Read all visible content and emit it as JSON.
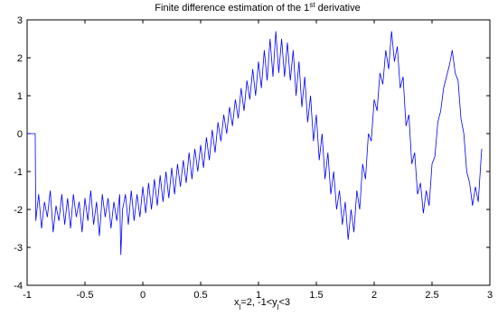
{
  "chart_data": {
    "type": "line",
    "title": [
      "Finite difference estimation of the 1",
      "st",
      " derivative"
    ],
    "x_label": [
      "x",
      "l",
      "=2, -1<y",
      "l",
      "<3"
    ],
    "color": "#0000ff",
    "xlim": [
      -1,
      3
    ],
    "ylim": [
      -4,
      3
    ],
    "xticks": [
      -1,
      -0.5,
      0,
      0.5,
      1,
      1.5,
      2,
      2.5,
      3
    ],
    "yticks": [
      -4,
      -3,
      -2,
      -1,
      0,
      1,
      2,
      3
    ],
    "grid": false,
    "x": [
      -1,
      -0.93,
      -0.925,
      -0.9,
      -0.875,
      -0.85,
      -0.825,
      -0.8,
      -0.775,
      -0.75,
      -0.725,
      -0.7,
      -0.675,
      -0.65,
      -0.625,
      -0.6,
      -0.575,
      -0.55,
      -0.525,
      -0.5,
      -0.475,
      -0.45,
      -0.425,
      -0.4,
      -0.375,
      -0.35,
      -0.325,
      -0.3,
      -0.275,
      -0.25,
      -0.225,
      -0.2,
      -0.19,
      -0.175,
      -0.15,
      -0.125,
      -0.1,
      -0.075,
      -0.05,
      -0.025,
      0,
      0.025,
      0.05,
      0.075,
      0.1,
      0.125,
      0.15,
      0.175,
      0.2,
      0.225,
      0.25,
      0.275,
      0.3,
      0.325,
      0.35,
      0.375,
      0.4,
      0.425,
      0.45,
      0.475,
      0.5,
      0.525,
      0.55,
      0.575,
      0.6,
      0.625,
      0.65,
      0.675,
      0.7,
      0.725,
      0.75,
      0.775,
      0.8,
      0.825,
      0.85,
      0.875,
      0.9,
      0.925,
      0.95,
      0.975,
      1.0,
      1.025,
      1.05,
      1.075,
      1.1,
      1.125,
      1.15,
      1.175,
      1.2,
      1.225,
      1.25,
      1.275,
      1.3,
      1.325,
      1.35,
      1.375,
      1.4,
      1.425,
      1.45,
      1.475,
      1.5,
      1.525,
      1.55,
      1.575,
      1.6,
      1.625,
      1.65,
      1.675,
      1.7,
      1.725,
      1.75,
      1.775,
      1.8,
      1.825,
      1.85,
      1.875,
      1.9,
      1.925,
      1.95,
      1.975,
      2.0,
      2.025,
      2.05,
      2.075,
      2.1,
      2.125,
      2.15,
      2.175,
      2.2,
      2.225,
      2.25,
      2.275,
      2.3,
      2.325,
      2.35,
      2.375,
      2.4,
      2.425,
      2.45,
      2.475,
      2.5,
      2.525,
      2.55,
      2.575,
      2.6,
      2.625,
      2.65,
      2.675,
      2.7,
      2.725,
      2.75,
      2.775,
      2.8,
      2.825,
      2.85,
      2.875,
      2.9,
      2.925,
      2.93
    ],
    "values": [
      0,
      0,
      -2.3,
      -1.6,
      -2.5,
      -1.8,
      -2.2,
      -1.5,
      -2.6,
      -1.9,
      -2.3,
      -1.6,
      -2.4,
      -1.7,
      -2.5,
      -1.6,
      -2.2,
      -1.8,
      -2.6,
      -1.7,
      -2.3,
      -1.5,
      -2.4,
      -1.8,
      -2.7,
      -1.6,
      -2.2,
      -1.7,
      -2.5,
      -1.8,
      -2.3,
      -1.6,
      -3.2,
      -2.0,
      -1.6,
      -2.4,
      -1.5,
      -2.3,
      -1.6,
      -2.2,
      -1.4,
      -2.1,
      -1.3,
      -2.0,
      -1.2,
      -1.9,
      -1.1,
      -1.8,
      -1.0,
      -1.7,
      -0.9,
      -1.6,
      -0.8,
      -1.4,
      -0.7,
      -1.3,
      -0.5,
      -1.2,
      -0.4,
      -1.0,
      -0.3,
      -0.9,
      -0.1,
      -0.7,
      0.1,
      -0.5,
      0.3,
      -0.2,
      0.5,
      0.0,
      0.7,
      0.2,
      0.9,
      0.4,
      1.2,
      0.6,
      1.4,
      0.9,
      1.7,
      1.0,
      1.9,
      1.2,
      2.2,
      1.4,
      2.5,
      1.5,
      2.7,
      1.6,
      2.5,
      1.5,
      2.4,
      1.4,
      2.2,
      1.0,
      1.9,
      0.7,
      1.5,
      0.3,
      1.0,
      -0.2,
      0.5,
      -0.7,
      0.0,
      -1.2,
      -0.5,
      -1.6,
      -1.0,
      -2.0,
      -1.5,
      -2.4,
      -1.8,
      -2.8,
      -2.0,
      -2.6,
      -1.5,
      -2.0,
      -0.8,
      -1.2,
      0.0,
      -0.2,
      0.9,
      0.6,
      1.6,
      1.3,
      2.2,
      1.7,
      2.7,
      1.9,
      2.3,
      1.2,
      1.5,
      0.2,
      0.5,
      -0.8,
      -0.5,
      -1.6,
      -1.3,
      -2.1,
      -1.5,
      -1.9,
      -0.8,
      -0.6,
      0.3,
      0.6,
      1.2,
      1.5,
      1.8,
      2.2,
      1.6,
      1.4,
      0.4,
      0.0,
      -1.0,
      -1.3,
      -1.9,
      -1.4,
      -1.8,
      -0.6,
      -0.4
    ]
  }
}
